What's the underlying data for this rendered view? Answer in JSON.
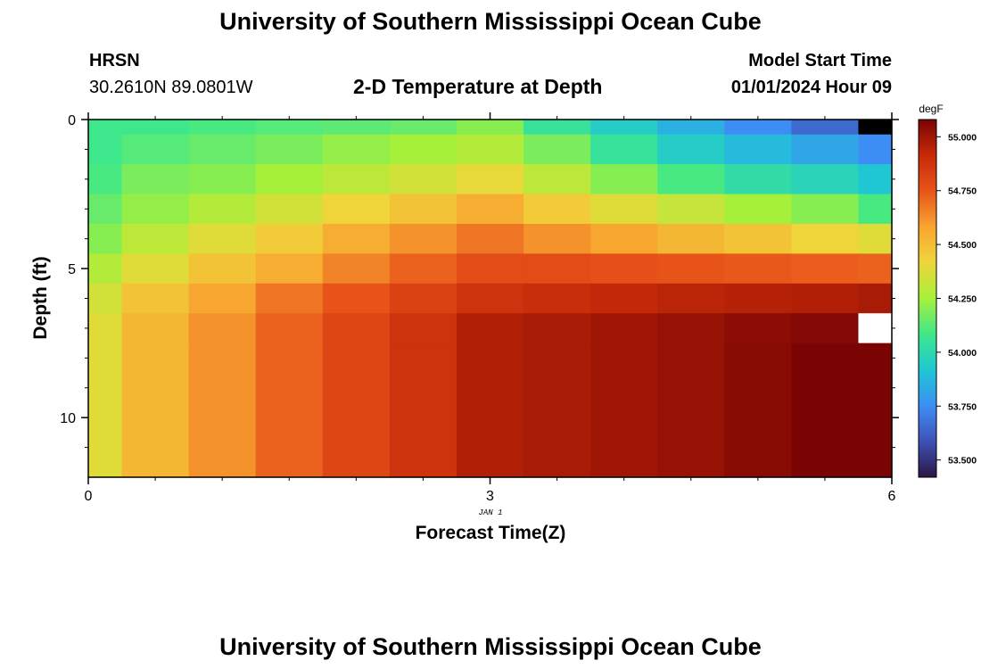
{
  "page": {
    "title": "University of Southern Mississippi Ocean Cube",
    "footer_title": "University of Southern Mississippi Ocean Cube",
    "station": "HRSN",
    "coords": "30.2610N  89.0801W",
    "plot_title": "2-D Temperature at Depth",
    "model_label": "Model Start Time",
    "model_time": "01/01/2024 Hour 09"
  },
  "chart_data": {
    "type": "heatmap",
    "title": "2-D Temperature at Depth",
    "xlabel": "Forecast Time(Z)",
    "ylabel": "Depth (ft)",
    "x_date_label": "JAN 1",
    "xlim": [
      0,
      6
    ],
    "ylim": [
      12,
      0
    ],
    "x_ticks": [
      0,
      3,
      6
    ],
    "y_ticks": [
      0,
      5,
      10
    ],
    "x_edges": [
      0,
      0.25,
      0.75,
      1.25,
      1.75,
      2.25,
      2.75,
      3.25,
      3.75,
      4.25,
      4.75,
      5.25,
      5.75,
      6
    ],
    "y_edges": [
      0,
      0.5,
      1.5,
      2.5,
      3.5,
      4.5,
      5.5,
      6.5,
      7.5,
      12
    ],
    "values": [
      [
        54.08,
        54.08,
        54.1,
        54.12,
        54.13,
        54.15,
        54.2,
        54.05,
        53.95,
        53.85,
        53.75,
        53.65,
        null
      ],
      [
        54.08,
        54.12,
        54.15,
        54.18,
        54.22,
        54.25,
        54.28,
        54.18,
        54.05,
        53.95,
        53.88,
        53.82,
        53.75
      ],
      [
        54.1,
        54.18,
        54.2,
        54.25,
        54.3,
        54.35,
        54.4,
        54.3,
        54.2,
        54.1,
        54.02,
        53.98,
        53.92
      ],
      [
        54.15,
        54.22,
        54.28,
        54.35,
        54.42,
        54.48,
        54.55,
        54.45,
        54.38,
        54.32,
        54.25,
        54.2,
        54.1
      ],
      [
        54.2,
        54.3,
        54.38,
        54.45,
        54.55,
        54.62,
        54.68,
        54.62,
        54.58,
        54.52,
        54.48,
        54.42,
        54.38
      ],
      [
        54.28,
        54.38,
        54.48,
        54.55,
        54.65,
        54.72,
        54.78,
        54.78,
        54.76,
        54.75,
        54.74,
        54.73,
        54.72
      ],
      [
        54.35,
        54.48,
        54.58,
        54.68,
        54.75,
        54.82,
        54.88,
        54.9,
        54.92,
        54.94,
        54.95,
        54.96,
        54.98
      ],
      [
        54.38,
        54.52,
        54.62,
        54.72,
        54.8,
        54.88,
        54.96,
        54.98,
        55.0,
        55.02,
        55.04,
        55.06,
        null
      ],
      [
        54.38,
        54.52,
        54.62,
        54.72,
        54.8,
        54.88,
        54.96,
        54.98,
        55.0,
        55.02,
        55.05,
        55.12,
        55.2
      ]
    ],
    "colorbar": {
      "label": "degF",
      "min": 53.42,
      "max": 55.08,
      "ticks": [
        53.5,
        53.75,
        54.0,
        54.25,
        54.5,
        54.75,
        55.0
      ],
      "tick_labels": [
        "53.500",
        "53.750",
        "54.000",
        "54.250",
        "54.500",
        "54.750",
        "55.000"
      ],
      "colors": [
        "#2a1644",
        "#3f51b5",
        "#3d8ff5",
        "#1fc7d4",
        "#3fe88a",
        "#a6f03a",
        "#efd63a",
        "#f7a530",
        "#e8541a",
        "#c62a08",
        "#7a0403"
      ]
    }
  }
}
